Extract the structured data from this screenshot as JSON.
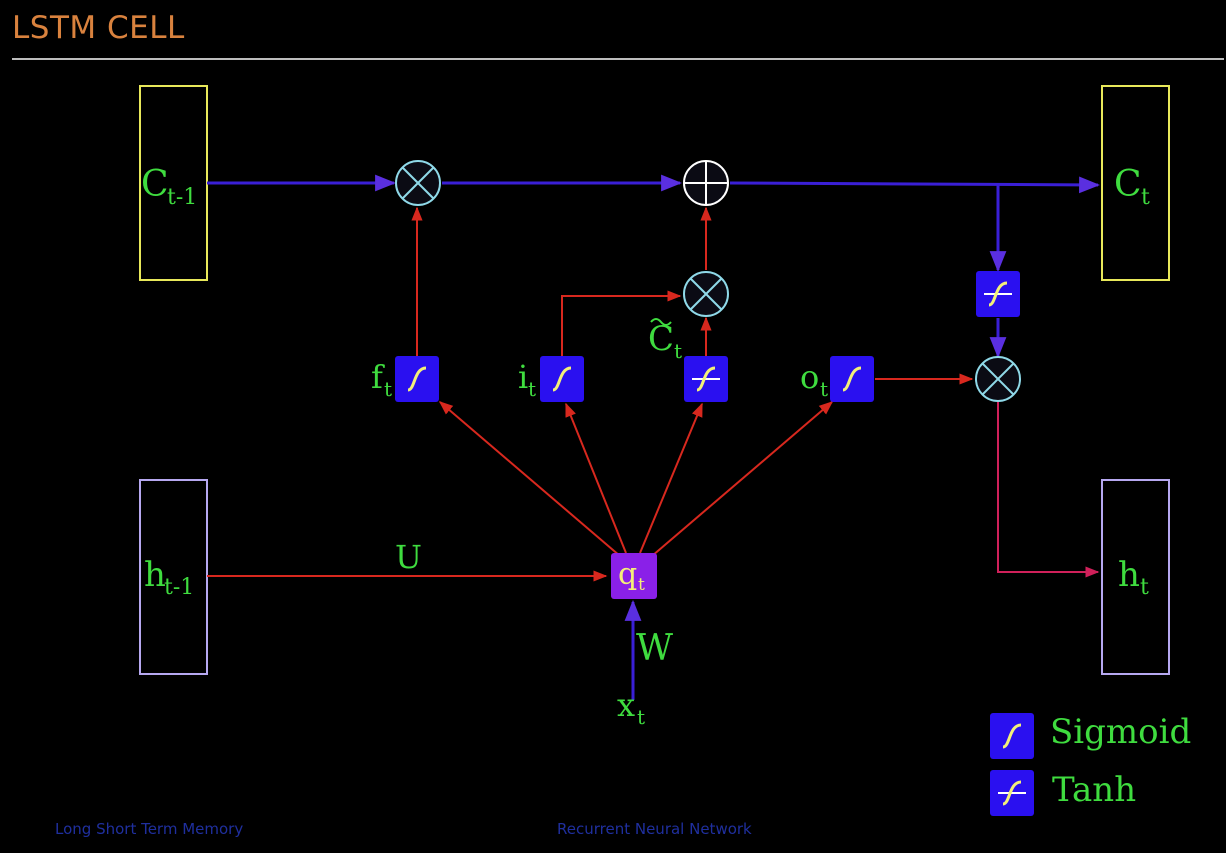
{
  "slide": {
    "title": "LSTM CELL"
  },
  "diagram": {
    "cell_prev": "C",
    "cell_prev_sub": "t-1",
    "cell_cur": "C",
    "cell_cur_sub": "t",
    "hidden_prev": "h",
    "hidden_prev_sub": "t-1",
    "hidden_cur": "h",
    "hidden_cur_sub": "t",
    "input": "x",
    "input_sub": "t",
    "q": "q",
    "q_sub": "t",
    "forget_gate": "f",
    "forget_gate_sub": "t",
    "input_gate": "i",
    "input_gate_sub": "t",
    "candidate": "C",
    "candidate_sub": "t",
    "output_gate": "o",
    "output_gate_sub": "t",
    "weight_u": "U",
    "weight_w": "W"
  },
  "legend": {
    "sigmoid": "Sigmoid",
    "tanh": "Tanh"
  },
  "footer": {
    "left": "Long Short Term Memory",
    "center": "Recurrent Neural Network"
  },
  "colors": {
    "title": "#d9823e",
    "label": "#3fdc3f",
    "cell_line": "#3a1fd6",
    "hidden_line": "#d8281e",
    "gate_fill": "#2a10f0",
    "q_fill": "#8a20e8",
    "cell_box": "#e8e85a",
    "hidden_box": "#b6a8f0"
  }
}
